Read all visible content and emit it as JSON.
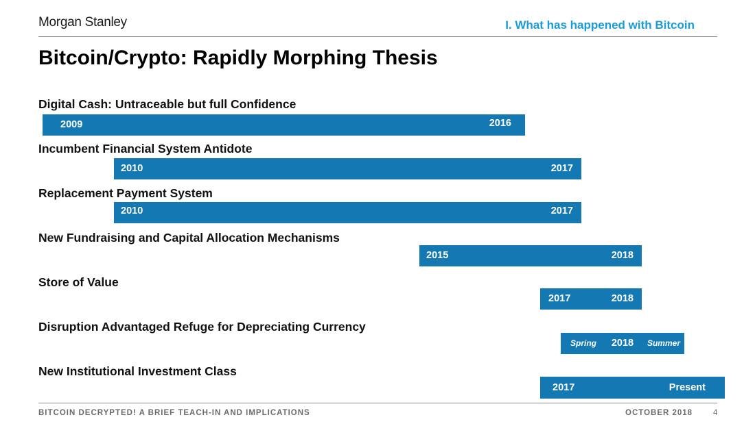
{
  "header": {
    "logo": "Morgan Stanley",
    "section_title": "I. What has happened with Bitcoin"
  },
  "title": "Bitcoin/Crypto: Rapidly Morphing Thesis",
  "rows": [
    {
      "label": "Digital Cash: Untraceable but full Confidence",
      "start": "2009",
      "end": "2016"
    },
    {
      "label": "Incumbent Financial System Antidote",
      "start": "2010",
      "end": "2017"
    },
    {
      "label": "Replacement Payment System",
      "start": "2010",
      "end": "2017"
    },
    {
      "label": "New Fundraising and Capital Allocation Mechanisms",
      "start": "2015",
      "end": "2018"
    },
    {
      "label": "Store of Value",
      "start": "2017",
      "end": "2018"
    },
    {
      "label": "Disruption Advantaged Refuge for Depreciating Currency",
      "start": "Spring",
      "mid": "2018",
      "end": "Summer"
    },
    {
      "label": "New Institutional Investment Class",
      "start": "2017",
      "end": "Present"
    }
  ],
  "footer": {
    "left": "BITCOIN DECRYPTED! A BRIEF TEACH-IN AND IMPLICATIONS",
    "date": "OCTOBER 2018",
    "page": "4"
  },
  "colors": {
    "bar": "#1479b3",
    "accent": "#1a9ad6"
  }
}
